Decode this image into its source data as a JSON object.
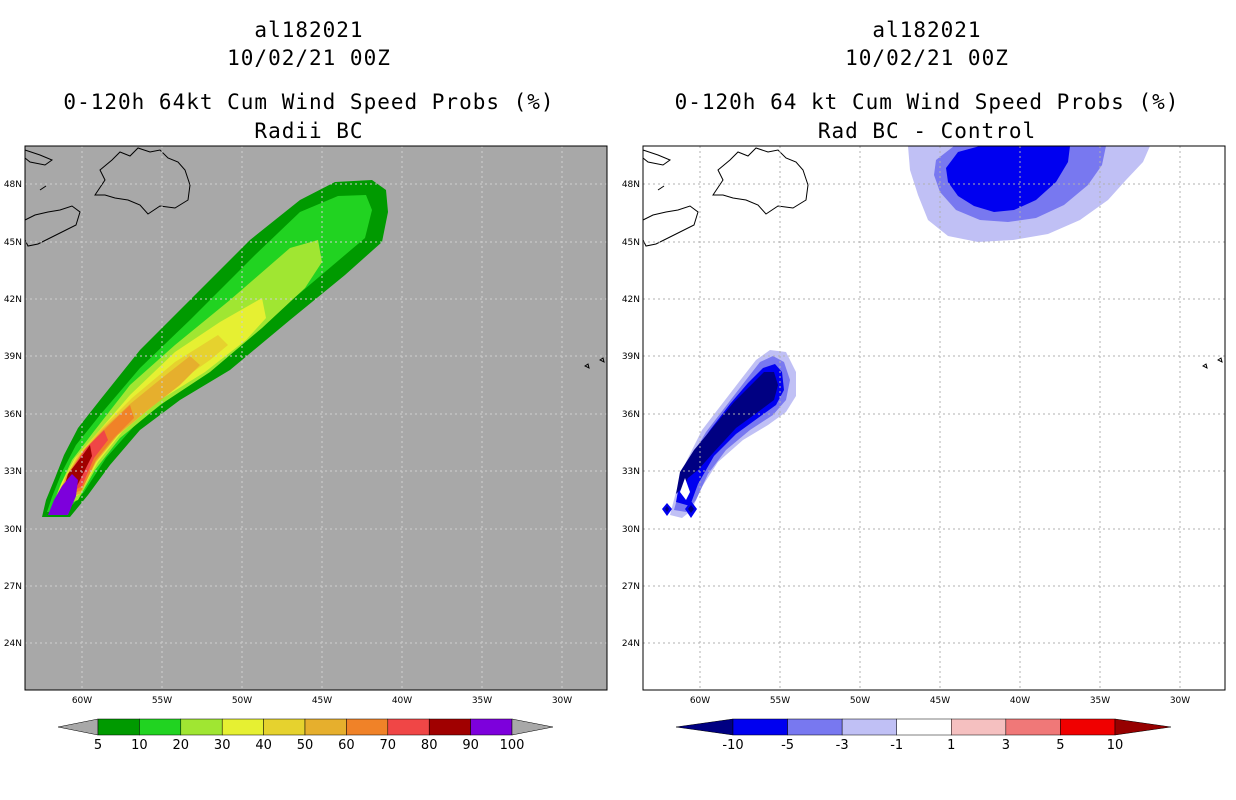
{
  "left_panel": {
    "title1": "al182021",
    "title2": "10/02/21 00Z",
    "title3": "0-120h 64kt Cum Wind Speed Probs (%)",
    "title4": "Radii BC",
    "background_color": "#a8a8a8",
    "colorbar": {
      "colors": [
        "#009a00",
        "#21d321",
        "#a0e632",
        "#e6f032",
        "#e6d22e",
        "#e6af2d",
        "#f08228",
        "#f04646",
        "#a00000",
        "#7d00dc"
      ],
      "labels": [
        "5",
        "10",
        "20",
        "30",
        "40",
        "50",
        "60",
        "70",
        "80",
        "90",
        "100"
      ]
    }
  },
  "right_panel": {
    "title1": "al182021",
    "title2": "10/02/21 00Z",
    "title3": "0-120h 64 kt Cum Wind Speed Probs (%)",
    "title4": "Rad BC - Control",
    "background_color": "#ffffff",
    "colorbar": {
      "colors": [
        "#000082",
        "#0000f0",
        "#7878f0",
        "#c0c0f5",
        "#ffffff",
        "#f5c0c0",
        "#f07878",
        "#f00000",
        "#960000"
      ],
      "labels": [
        "-10",
        "-5",
        "-3",
        "-1",
        "1",
        "3",
        "5",
        "10"
      ]
    }
  },
  "axes": {
    "lat_labels": [
      "48N",
      "45N",
      "42N",
      "39N",
      "36N",
      "33N",
      "30N",
      "27N",
      "24N"
    ],
    "lon_labels": [
      "60W",
      "55W",
      "50W",
      "45W",
      "40W",
      "35W",
      "30W"
    ]
  }
}
